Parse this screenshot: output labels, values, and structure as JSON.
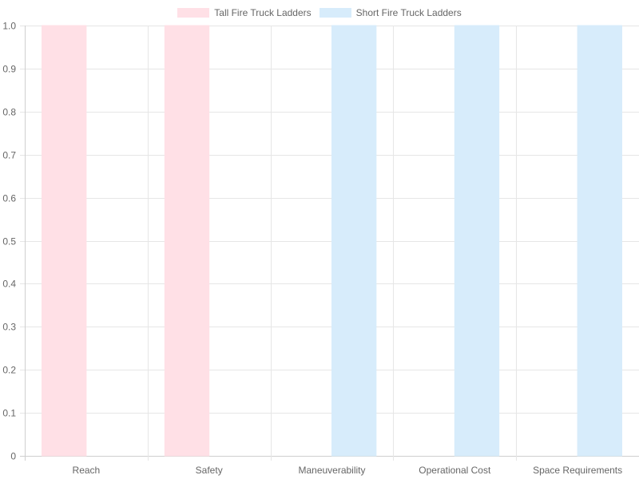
{
  "chart_data": {
    "type": "bar",
    "categories": [
      "Reach",
      "Safety",
      "Maneuverability",
      "Operational Cost",
      "Space Requirements"
    ],
    "series": [
      {
        "name": "Tall Fire Truck Ladders",
        "values": [
          1,
          1,
          0,
          0,
          0
        ]
      },
      {
        "name": "Short Fire Truck Ladders",
        "values": [
          0,
          0,
          1,
          1,
          1
        ]
      }
    ],
    "ylim": [
      0,
      1
    ],
    "yticks": [
      "0",
      "0.1",
      "0.2",
      "0.3",
      "0.4",
      "0.5",
      "0.6",
      "0.7",
      "0.8",
      "0.9",
      "1.0"
    ],
    "grid": true,
    "legend_position": "top-center",
    "colors": {
      "series": [
        "#ffe0e6",
        "#d7ecfb"
      ],
      "grid": "#e6e6e6",
      "text": "#666666"
    }
  }
}
